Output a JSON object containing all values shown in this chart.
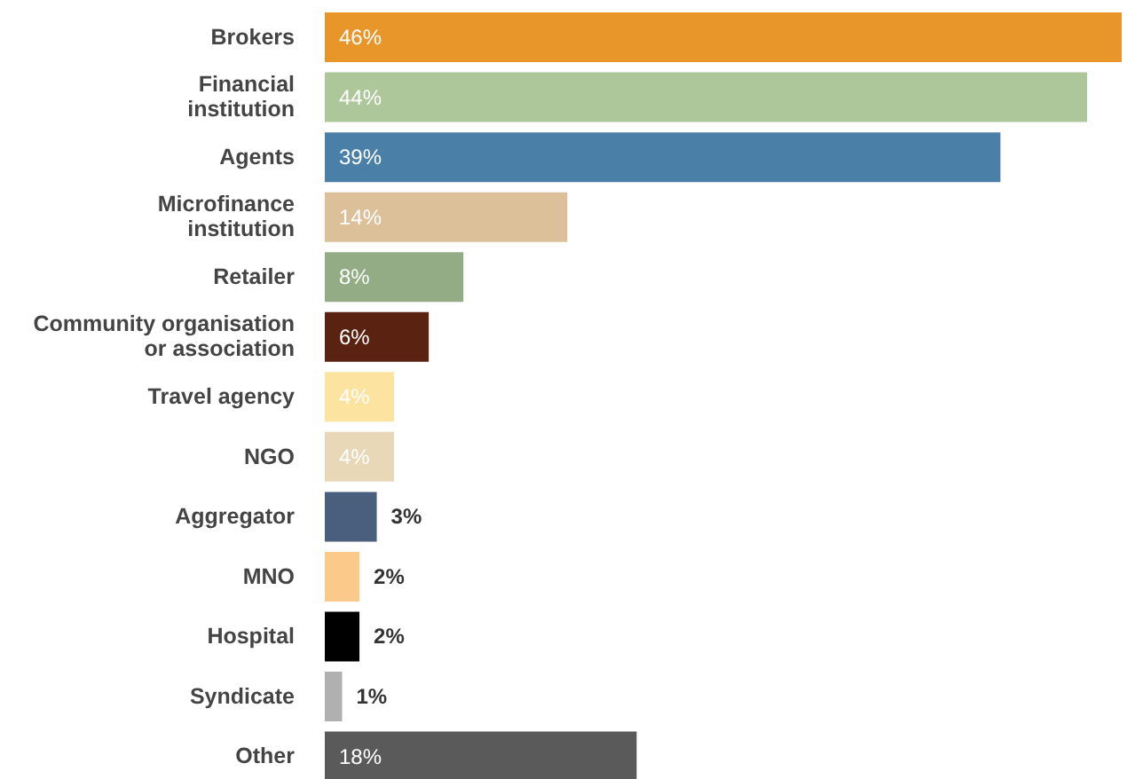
{
  "chart_data": {
    "type": "bar",
    "orientation": "horizontal",
    "categories": [
      "Brokers",
      "Financial\ninstitution",
      "Agents",
      "Microfinance\ninstitution",
      "Retailer",
      "Community organisation\nor association",
      "Travel agency",
      "NGO",
      "Aggregator",
      "MNO",
      "Hospital",
      "Syndicate",
      "Other"
    ],
    "values": [
      46,
      44,
      39,
      14,
      8,
      6,
      4,
      4,
      3,
      2,
      2,
      1,
      18
    ],
    "value_labels": [
      "46%",
      "44%",
      "39%",
      "14%",
      "8%",
      "6%",
      "4%",
      "4%",
      "3%",
      "2%",
      "2%",
      "1%",
      "18%"
    ],
    "colors": [
      "#e8952a",
      "#adc69a",
      "#4a7fa8",
      "#dcc09a",
      "#93ac86",
      "#5a2210",
      "#fce3a0",
      "#e8d8b8",
      "#4a5f7e",
      "#fbc98a",
      "#000000",
      "#b0b0b0",
      "#5a5a5a"
    ]
  }
}
